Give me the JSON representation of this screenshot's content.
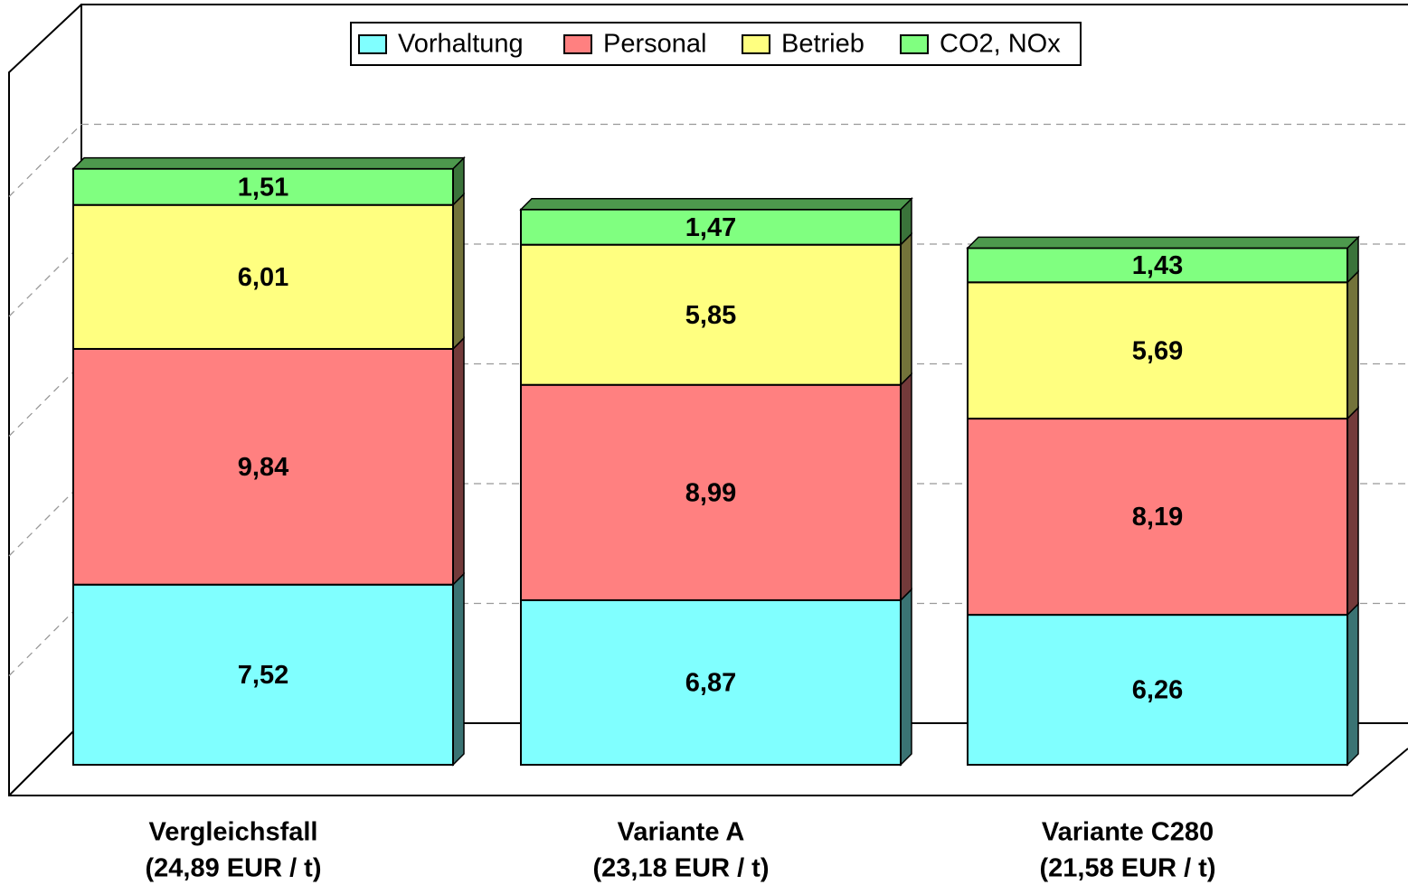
{
  "chart_data": {
    "type": "bar",
    "stacked": true,
    "categories": [
      "Vergleichsfall",
      "Variante A",
      "Variante C280"
    ],
    "category_subtitles": [
      "(24,89 EUR / t)",
      "(23,18 EUR / t)",
      "(21,58 EUR / t)"
    ],
    "series": [
      {
        "name": "Vorhaltung",
        "color": "#80ffff",
        "values": [
          7.52,
          6.87,
          6.26
        ],
        "value_labels": [
          "7,52",
          "6,87",
          "6,26"
        ]
      },
      {
        "name": "Personal",
        "color": "#ff8080",
        "values": [
          9.84,
          8.99,
          8.19
        ],
        "value_labels": [
          "9,84",
          "8,99",
          "8,19"
        ]
      },
      {
        "name": "Betrieb",
        "color": "#ffff80",
        "values": [
          6.01,
          5.85,
          5.69
        ],
        "value_labels": [
          "6,01",
          "5,85",
          "5,69"
        ]
      },
      {
        "name": "CO2, NOx",
        "color": "#80ff80",
        "values": [
          1.51,
          1.47,
          1.43
        ],
        "value_labels": [
          "1,51",
          "1,47",
          "1,43"
        ]
      }
    ],
    "ylim": [
      0,
      30
    ],
    "yticks": [
      0,
      5,
      10,
      15,
      20,
      25
    ],
    "grid": true,
    "legend": "top"
  }
}
